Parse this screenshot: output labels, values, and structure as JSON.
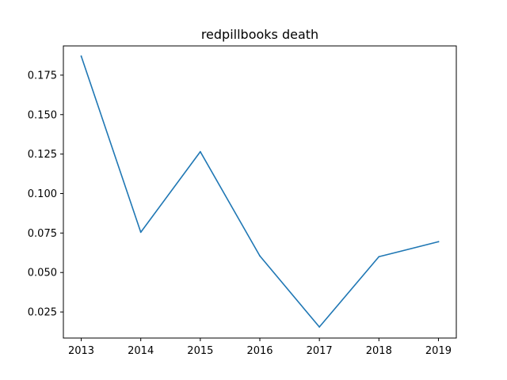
{
  "chart_data": {
    "type": "line",
    "title": "redpillbooks death",
    "xlabel": "",
    "ylabel": "",
    "x": [
      "2013",
      "2014",
      "2015",
      "2016",
      "2017",
      "2018",
      "2019"
    ],
    "series": [
      {
        "values": [
          0.187,
          0.0755,
          0.1265,
          0.0605,
          0.0155,
          0.06,
          0.0695
        ],
        "color": "#1f77b4"
      }
    ],
    "xlim": [
      2012.7,
      2019.3
    ],
    "ylim": [
      0.0085,
      0.1935
    ],
    "yticks": [
      0.025,
      0.05,
      0.075,
      0.1,
      0.125,
      0.15,
      0.175
    ],
    "ytick_labels": [
      "0.025",
      "0.050",
      "0.075",
      "0.100",
      "0.125",
      "0.150",
      "0.175"
    ],
    "xtick_labels": [
      "2013",
      "2014",
      "2015",
      "2016",
      "2017",
      "2018",
      "2019"
    ],
    "grid": false,
    "legend": false
  }
}
